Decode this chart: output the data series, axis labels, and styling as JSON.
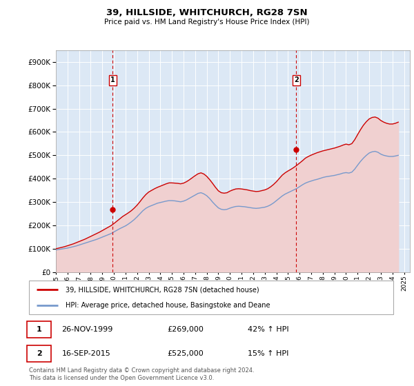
{
  "title": "39, HILLSIDE, WHITCHURCH, RG28 7SN",
  "subtitle": "Price paid vs. HM Land Registry's House Price Index (HPI)",
  "ylim": [
    0,
    950000
  ],
  "yticks": [
    0,
    100000,
    200000,
    300000,
    400000,
    500000,
    600000,
    700000,
    800000,
    900000
  ],
  "xlim_start": 1995.0,
  "xlim_end": 2025.5,
  "sale1_x": 1999.9,
  "sale1_y": 269000,
  "sale2_x": 2015.71,
  "sale2_y": 525000,
  "sale1_date": "26-NOV-1999",
  "sale1_price": "£269,000",
  "sale1_hpi": "42% ↑ HPI",
  "sale2_date": "16-SEP-2015",
  "sale2_price": "£525,000",
  "sale2_hpi": "15% ↑ HPI",
  "line1_color": "#cc0000",
  "line2_color": "#7799cc",
  "fill1_color": "#f0d0d0",
  "fill2_color": "#dce8f5",
  "bg_color": "#dce8f5",
  "grid_color": "#ffffff",
  "legend1": "39, HILLSIDE, WHITCHURCH, RG28 7SN (detached house)",
  "legend2": "HPI: Average price, detached house, Basingstoke and Deane",
  "footer": "Contains HM Land Registry data © Crown copyright and database right 2024.\nThis data is licensed under the Open Government Licence v3.0.",
  "hpi_x": [
    1995.0,
    1995.25,
    1995.5,
    1995.75,
    1996.0,
    1996.25,
    1996.5,
    1996.75,
    1997.0,
    1997.25,
    1997.5,
    1997.75,
    1998.0,
    1998.25,
    1998.5,
    1998.75,
    1999.0,
    1999.25,
    1999.5,
    1999.75,
    2000.0,
    2000.25,
    2000.5,
    2000.75,
    2001.0,
    2001.25,
    2001.5,
    2001.75,
    2002.0,
    2002.25,
    2002.5,
    2002.75,
    2003.0,
    2003.25,
    2003.5,
    2003.75,
    2004.0,
    2004.25,
    2004.5,
    2004.75,
    2005.0,
    2005.25,
    2005.5,
    2005.75,
    2006.0,
    2006.25,
    2006.5,
    2006.75,
    2007.0,
    2007.25,
    2007.5,
    2007.75,
    2008.0,
    2008.25,
    2008.5,
    2008.75,
    2009.0,
    2009.25,
    2009.5,
    2009.75,
    2010.0,
    2010.25,
    2010.5,
    2010.75,
    2011.0,
    2011.25,
    2011.5,
    2011.75,
    2012.0,
    2012.25,
    2012.5,
    2012.75,
    2013.0,
    2013.25,
    2013.5,
    2013.75,
    2014.0,
    2014.25,
    2014.5,
    2014.75,
    2015.0,
    2015.25,
    2015.5,
    2015.75,
    2016.0,
    2016.25,
    2016.5,
    2016.75,
    2017.0,
    2017.25,
    2017.5,
    2017.75,
    2018.0,
    2018.25,
    2018.5,
    2018.75,
    2019.0,
    2019.25,
    2019.5,
    2019.75,
    2020.0,
    2020.25,
    2020.5,
    2020.75,
    2021.0,
    2021.25,
    2021.5,
    2021.75,
    2022.0,
    2022.25,
    2022.5,
    2022.75,
    2023.0,
    2023.25,
    2023.5,
    2023.75,
    2024.0,
    2024.25,
    2024.5
  ],
  "hpi_y": [
    95000,
    97000,
    99000,
    101000,
    103000,
    106000,
    109000,
    112000,
    116000,
    120000,
    124000,
    128000,
    132000,
    136000,
    140000,
    145000,
    150000,
    155000,
    160000,
    165000,
    172000,
    179000,
    186000,
    192000,
    198000,
    206000,
    215000,
    225000,
    237000,
    250000,
    263000,
    273000,
    280000,
    285000,
    290000,
    295000,
    298000,
    301000,
    304000,
    306000,
    306000,
    305000,
    303000,
    301000,
    304000,
    309000,
    316000,
    323000,
    330000,
    337000,
    340000,
    335000,
    327000,
    315000,
    300000,
    287000,
    275000,
    269000,
    267000,
    269000,
    274000,
    278000,
    281000,
    282000,
    281000,
    280000,
    278000,
    276000,
    274000,
    273000,
    274000,
    276000,
    278000,
    282000,
    288000,
    296000,
    306000,
    316000,
    326000,
    334000,
    340000,
    346000,
    352000,
    358000,
    366000,
    374000,
    381000,
    386000,
    390000,
    394000,
    397000,
    401000,
    405000,
    408000,
    410000,
    412000,
    414000,
    417000,
    420000,
    424000,
    426000,
    424000,
    428000,
    441000,
    458000,
    474000,
    488000,
    500000,
    510000,
    515000,
    517000,
    513000,
    505000,
    500000,
    497000,
    495000,
    495000,
    497000,
    500000
  ],
  "price_y": [
    100000,
    103000,
    106000,
    109000,
    113000,
    117000,
    121000,
    126000,
    131000,
    136000,
    141000,
    147000,
    153000,
    159000,
    165000,
    171000,
    178000,
    185000,
    192000,
    199000,
    208000,
    218000,
    228000,
    238000,
    246000,
    254000,
    263000,
    274000,
    287000,
    302000,
    318000,
    332000,
    343000,
    350000,
    357000,
    363000,
    368000,
    373000,
    378000,
    382000,
    382000,
    381000,
    380000,
    378000,
    381000,
    387000,
    395000,
    404000,
    413000,
    421000,
    425000,
    420000,
    410000,
    396000,
    380000,
    363000,
    348000,
    340000,
    338000,
    340000,
    347000,
    352000,
    356000,
    357000,
    356000,
    354000,
    352000,
    349000,
    347000,
    345000,
    346000,
    349000,
    352000,
    357000,
    365000,
    375000,
    387000,
    401000,
    415000,
    425000,
    433000,
    440000,
    448000,
    457000,
    467000,
    477000,
    488000,
    495000,
    501000,
    506000,
    511000,
    515000,
    519000,
    522000,
    525000,
    528000,
    531000,
    535000,
    539000,
    544000,
    548000,
    545000,
    550000,
    567000,
    589000,
    610000,
    629000,
    644000,
    656000,
    662000,
    664000,
    659000,
    649000,
    642000,
    637000,
    634000,
    634000,
    637000,
    642000
  ]
}
